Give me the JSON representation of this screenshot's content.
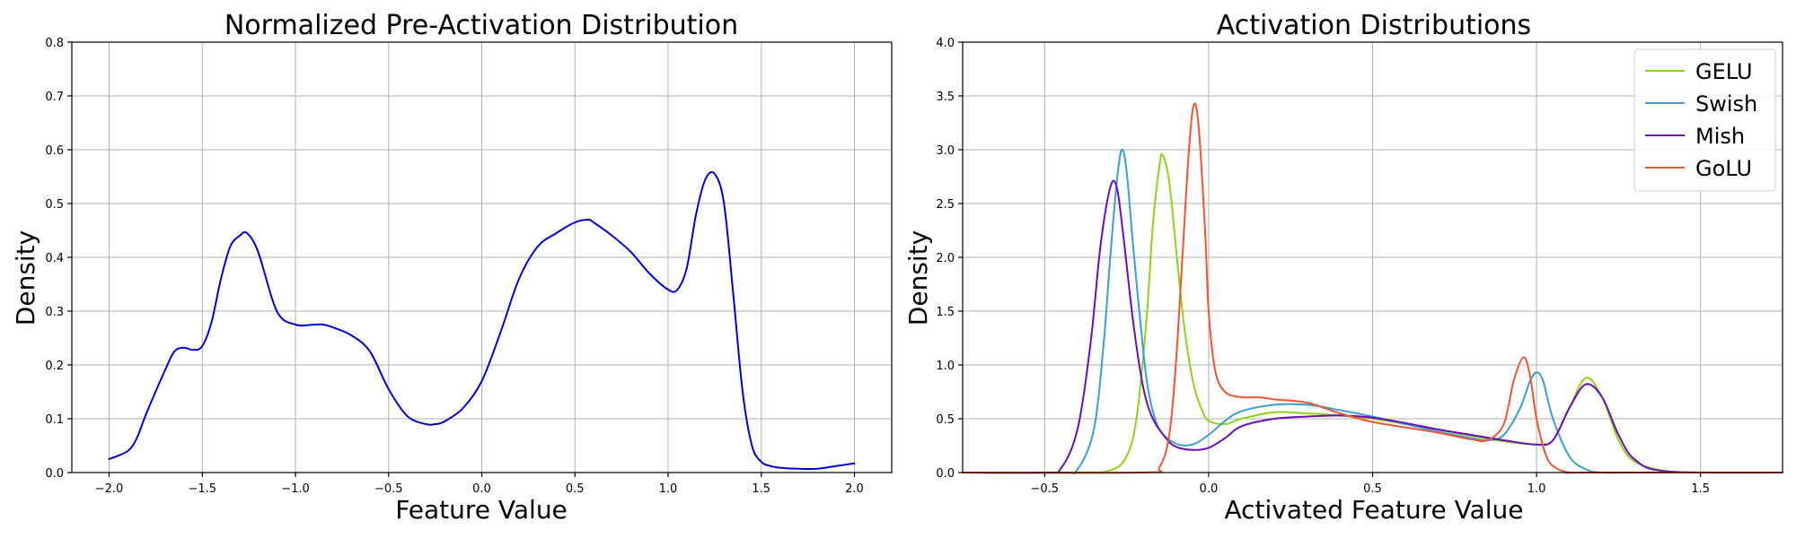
{
  "chart_data": [
    {
      "type": "line",
      "title": "Normalized Pre-Activation Distribution",
      "xlabel": "Feature Value",
      "ylabel": "Density",
      "xlim": [
        -2.2,
        2.2
      ],
      "ylim": [
        0,
        0.8
      ],
      "xticks": [
        -2.0,
        -1.5,
        -1.0,
        -0.5,
        0.0,
        0.5,
        1.0,
        1.5,
        2.0
      ],
      "xtick_labels": [
        "−2.0",
        "−1.5",
        "−1.0",
        "−0.5",
        "0.0",
        "0.5",
        "1.0",
        "1.5",
        "2.0"
      ],
      "yticks": [
        0.0,
        0.1,
        0.2,
        0.3,
        0.4,
        0.5,
        0.6,
        0.7,
        0.8
      ],
      "ytick_labels": [
        "0.0",
        "0.1",
        "0.2",
        "0.3",
        "0.4",
        "0.5",
        "0.6",
        "0.7",
        "0.8"
      ],
      "grid": true,
      "series": [
        {
          "color": "#0000cc",
          "x": [
            -2.0,
            -1.9,
            -1.85,
            -1.8,
            -1.7,
            -1.65,
            -1.6,
            -1.55,
            -1.5,
            -1.45,
            -1.4,
            -1.35,
            -1.3,
            -1.26,
            -1.2,
            -1.1,
            -1.0,
            -0.9,
            -0.85,
            -0.8,
            -0.7,
            -0.6,
            -0.5,
            -0.4,
            -0.3,
            -0.25,
            -0.2,
            -0.1,
            0.0,
            0.1,
            0.2,
            0.3,
            0.4,
            0.5,
            0.57,
            0.6,
            0.7,
            0.8,
            0.9,
            1.0,
            1.05,
            1.1,
            1.15,
            1.2,
            1.25,
            1.3,
            1.35,
            1.4,
            1.45,
            1.5,
            1.55,
            1.6,
            1.7,
            1.8,
            1.9,
            2.0
          ],
          "y": [
            0.025,
            0.04,
            0.065,
            0.11,
            0.19,
            0.225,
            0.232,
            0.228,
            0.235,
            0.28,
            0.36,
            0.42,
            0.44,
            0.445,
            0.41,
            0.3,
            0.275,
            0.275,
            0.275,
            0.27,
            0.255,
            0.225,
            0.155,
            0.105,
            0.09,
            0.09,
            0.095,
            0.12,
            0.17,
            0.26,
            0.36,
            0.42,
            0.445,
            0.465,
            0.47,
            0.465,
            0.44,
            0.41,
            0.37,
            0.34,
            0.34,
            0.38,
            0.48,
            0.545,
            0.555,
            0.5,
            0.33,
            0.15,
            0.05,
            0.02,
            0.012,
            0.009,
            0.007,
            0.007,
            0.012,
            0.017
          ]
        }
      ]
    },
    {
      "type": "line",
      "title": "Activation Distributions",
      "xlabel": "Activated Feature Value",
      "ylabel": "Density",
      "xlim": [
        -0.75,
        1.75
      ],
      "ylim": [
        0,
        4.0
      ],
      "xticks": [
        -0.5,
        0.0,
        0.5,
        1.0,
        1.5
      ],
      "xtick_labels": [
        "−0.5",
        "0.0",
        "0.5",
        "1.0",
        "1.5"
      ],
      "yticks": [
        0.0,
        0.5,
        1.0,
        1.5,
        2.0,
        2.5,
        3.0,
        3.5,
        4.0
      ],
      "ytick_labels": [
        "0.0",
        "0.5",
        "1.0",
        "1.5",
        "2.0",
        "2.5",
        "3.0",
        "3.5",
        "4.0"
      ],
      "grid": true,
      "legend": "top-right",
      "series": [
        {
          "name": "GELU",
          "color": "#8fd11f",
          "x": [
            -0.75,
            -0.4,
            -0.3,
            -0.25,
            -0.22,
            -0.19,
            -0.17,
            -0.15,
            -0.14,
            -0.12,
            -0.1,
            -0.08,
            -0.06,
            -0.04,
            -0.02,
            0.0,
            0.05,
            0.1,
            0.2,
            0.3,
            0.4,
            0.5,
            0.6,
            0.7,
            0.8,
            0.9,
            1.0,
            1.05,
            1.1,
            1.15,
            1.2,
            1.25,
            1.3,
            1.4,
            1.5,
            1.75
          ],
          "y": [
            0.0,
            0.0,
            0.02,
            0.15,
            0.5,
            1.4,
            2.3,
            2.85,
            2.95,
            2.7,
            2.1,
            1.5,
            1.05,
            0.75,
            0.58,
            0.48,
            0.45,
            0.5,
            0.56,
            0.55,
            0.53,
            0.5,
            0.45,
            0.4,
            0.34,
            0.29,
            0.26,
            0.3,
            0.6,
            0.88,
            0.7,
            0.3,
            0.1,
            0.01,
            0.0,
            0.0
          ]
        },
        {
          "name": "Swish",
          "color": "#3a9fd0",
          "x": [
            -0.75,
            -0.45,
            -0.4,
            -0.35,
            -0.32,
            -0.3,
            -0.28,
            -0.265,
            -0.25,
            -0.23,
            -0.2,
            -0.18,
            -0.15,
            -0.1,
            -0.05,
            0.0,
            0.05,
            0.1,
            0.2,
            0.3,
            0.4,
            0.5,
            0.6,
            0.7,
            0.8,
            0.85,
            0.9,
            0.95,
            0.98,
            1.0,
            1.02,
            1.05,
            1.1,
            1.15,
            1.2,
            1.3,
            1.75
          ],
          "y": [
            0.0,
            0.0,
            0.03,
            0.4,
            1.2,
            2.0,
            2.7,
            3.0,
            2.8,
            2.1,
            1.15,
            0.7,
            0.4,
            0.27,
            0.26,
            0.35,
            0.48,
            0.57,
            0.63,
            0.63,
            0.58,
            0.52,
            0.45,
            0.38,
            0.32,
            0.3,
            0.35,
            0.6,
            0.85,
            0.93,
            0.85,
            0.5,
            0.15,
            0.03,
            0.0,
            0.0,
            0.0
          ]
        },
        {
          "name": "Mish",
          "color": "#6a0fb5",
          "x": [
            -0.75,
            -0.5,
            -0.45,
            -0.4,
            -0.36,
            -0.33,
            -0.3,
            -0.28,
            -0.26,
            -0.23,
            -0.2,
            -0.17,
            -0.13,
            -0.1,
            -0.05,
            0.0,
            0.05,
            0.1,
            0.2,
            0.3,
            0.4,
            0.5,
            0.6,
            0.7,
            0.8,
            0.9,
            1.0,
            1.05,
            1.1,
            1.15,
            1.2,
            1.25,
            1.3,
            1.4,
            1.75
          ],
          "y": [
            0.0,
            0.0,
            0.04,
            0.4,
            1.2,
            2.1,
            2.65,
            2.65,
            2.2,
            1.4,
            0.8,
            0.5,
            0.32,
            0.24,
            0.21,
            0.23,
            0.32,
            0.43,
            0.5,
            0.52,
            0.53,
            0.51,
            0.46,
            0.4,
            0.35,
            0.3,
            0.26,
            0.3,
            0.6,
            0.82,
            0.7,
            0.35,
            0.12,
            0.01,
            0.0
          ]
        },
        {
          "name": "GoLU",
          "color": "#ef5530",
          "x": [
            -0.75,
            -0.2,
            -0.15,
            -0.12,
            -0.1,
            -0.08,
            -0.06,
            -0.045,
            -0.03,
            -0.01,
            0.0,
            0.02,
            0.05,
            0.1,
            0.15,
            0.2,
            0.3,
            0.4,
            0.5,
            0.6,
            0.7,
            0.8,
            0.85,
            0.9,
            0.93,
            0.96,
            0.98,
            1.0,
            1.03,
            1.06,
            1.1,
            1.15,
            1.75
          ],
          "y": [
            0.0,
            0.0,
            0.05,
            0.35,
            1.0,
            2.0,
            3.0,
            3.42,
            3.2,
            2.2,
            1.5,
            0.95,
            0.75,
            0.7,
            0.7,
            0.68,
            0.65,
            0.55,
            0.47,
            0.42,
            0.37,
            0.31,
            0.3,
            0.45,
            0.85,
            1.07,
            0.9,
            0.5,
            0.15,
            0.04,
            0.0,
            0.0,
            0.0
          ]
        }
      ]
    }
  ]
}
